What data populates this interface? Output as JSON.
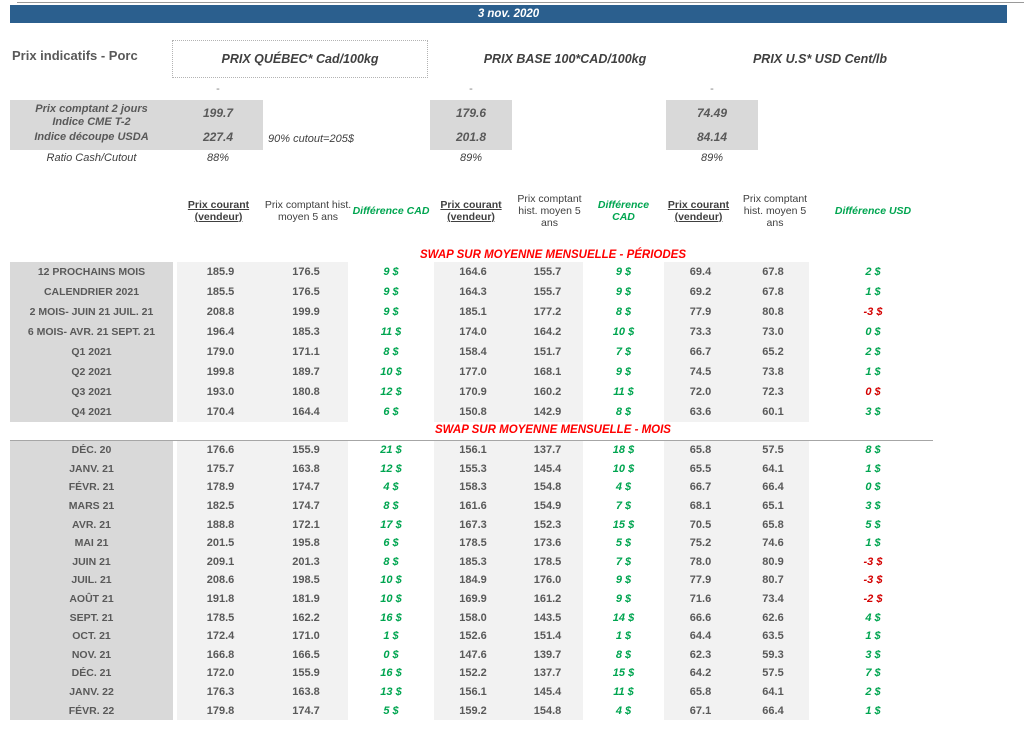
{
  "date_banner": "3 nov. 2020",
  "page_label": "Prix indicatifs - Porc",
  "group_headers": {
    "quebec": "PRIX QUÉBEC* Cad/100kg",
    "base": "PRIX BASE 100*CAD/100kg",
    "us": "PRIX U.S* USD Cent/lb"
  },
  "collapse_marker": "-",
  "spot": {
    "row1": {
      "label_line1": "Prix comptant 2 jours",
      "label_line2": "Indice CME T-2",
      "quebec": "199.7",
      "base": "179.6",
      "us": "74.49"
    },
    "row2": {
      "label": "Indice découpe USDA",
      "quebec": "227.4",
      "note": "90% cutout=205$",
      "base": "201.8",
      "us": "84.14"
    },
    "row3": {
      "label": "Ratio Cash/Cutout",
      "quebec": "88%",
      "base": "89%",
      "us": "89%"
    }
  },
  "table": {
    "column_headers": {
      "prix_courant": "Prix courant (vendeur)",
      "prix_comptant_hist": "Prix comptant hist. moyen 5 ans",
      "difference_cad": "Différence CAD",
      "difference_usd": "Différence USD"
    },
    "sections": [
      {
        "title": "SWAP SUR MOYENNE MENSUELLE - PÉRIODES",
        "rows": [
          {
            "label": "12 PROCHAINS MOIS",
            "values": [
              "185.9",
              "176.5",
              "9 $",
              "164.6",
              "155.7",
              "9 $",
              "69.4",
              "67.8",
              "2 $"
            ],
            "diff_neg": [
              false,
              false,
              false
            ]
          },
          {
            "label": "CALENDRIER 2021",
            "values": [
              "185.5",
              "176.5",
              "9 $",
              "164.3",
              "155.7",
              "9 $",
              "69.2",
              "67.8",
              "1 $"
            ],
            "diff_neg": [
              false,
              false,
              false
            ]
          },
          {
            "label": "2 MOIS- JUIN 21 JUIL. 21",
            "values": [
              "208.8",
              "199.9",
              "9 $",
              "185.1",
              "177.2",
              "8 $",
              "77.9",
              "80.8",
              "-3 $"
            ],
            "diff_neg": [
              false,
              false,
              true
            ]
          },
          {
            "label": "6 MOIS- AVR. 21 SEPT. 21",
            "values": [
              "196.4",
              "185.3",
              "11 $",
              "174.0",
              "164.2",
              "10 $",
              "73.3",
              "73.0",
              "0 $"
            ],
            "diff_neg": [
              false,
              false,
              false
            ]
          },
          {
            "label": "Q1 2021",
            "values": [
              "179.0",
              "171.1",
              "8 $",
              "158.4",
              "151.7",
              "7 $",
              "66.7",
              "65.2",
              "2 $"
            ],
            "diff_neg": [
              false,
              false,
              false
            ]
          },
          {
            "label": "Q2 2021",
            "values": [
              "199.8",
              "189.7",
              "10 $",
              "177.0",
              "168.1",
              "9 $",
              "74.5",
              "73.8",
              "1 $"
            ],
            "diff_neg": [
              false,
              false,
              false
            ]
          },
          {
            "label": "Q3 2021",
            "values": [
              "193.0",
              "180.8",
              "12 $",
              "170.9",
              "160.2",
              "11 $",
              "72.0",
              "72.3",
              "0 $"
            ],
            "diff_neg": [
              false,
              false,
              true
            ]
          },
          {
            "label": "Q4 2021",
            "values": [
              "170.4",
              "164.4",
              "6 $",
              "150.8",
              "142.9",
              "8 $",
              "63.6",
              "60.1",
              "3 $"
            ],
            "diff_neg": [
              false,
              false,
              false
            ]
          }
        ]
      },
      {
        "title": "SWAP SUR MOYENNE MENSUELLE - MOIS",
        "rows": [
          {
            "label": "DÉC. 20",
            "values": [
              "176.6",
              "155.9",
              "21 $",
              "156.1",
              "137.7",
              "18 $",
              "65.8",
              "57.5",
              "8 $"
            ],
            "diff_neg": [
              false,
              false,
              false
            ]
          },
          {
            "label": "JANV. 21",
            "values": [
              "175.7",
              "163.8",
              "12 $",
              "155.3",
              "145.4",
              "10 $",
              "65.5",
              "64.1",
              "1 $"
            ],
            "diff_neg": [
              false,
              false,
              false
            ]
          },
          {
            "label": "FÉVR. 21",
            "values": [
              "178.9",
              "174.7",
              "4 $",
              "158.3",
              "154.8",
              "4 $",
              "66.7",
              "66.4",
              "0 $"
            ],
            "diff_neg": [
              false,
              false,
              false
            ]
          },
          {
            "label": "MARS 21",
            "values": [
              "182.5",
              "174.7",
              "8 $",
              "161.6",
              "154.9",
              "7 $",
              "68.1",
              "65.1",
              "3 $"
            ],
            "diff_neg": [
              false,
              false,
              false
            ]
          },
          {
            "label": "AVR. 21",
            "values": [
              "188.8",
              "172.1",
              "17 $",
              "167.3",
              "152.3",
              "15 $",
              "70.5",
              "65.8",
              "5 $"
            ],
            "diff_neg": [
              false,
              false,
              false
            ]
          },
          {
            "label": "MAI 21",
            "values": [
              "201.5",
              "195.8",
              "6 $",
              "178.5",
              "173.6",
              "5 $",
              "75.2",
              "74.6",
              "1 $"
            ],
            "diff_neg": [
              false,
              false,
              false
            ]
          },
          {
            "label": "JUIN 21",
            "values": [
              "209.1",
              "201.3",
              "8 $",
              "185.3",
              "178.5",
              "7 $",
              "78.0",
              "80.9",
              "-3 $"
            ],
            "diff_neg": [
              false,
              false,
              true
            ]
          },
          {
            "label": "JUIL. 21",
            "values": [
              "208.6",
              "198.5",
              "10 $",
              "184.9",
              "176.0",
              "9 $",
              "77.9",
              "80.7",
              "-3 $"
            ],
            "diff_neg": [
              false,
              false,
              true
            ]
          },
          {
            "label": "AOÛT 21",
            "values": [
              "191.8",
              "181.9",
              "10 $",
              "169.9",
              "161.2",
              "9 $",
              "71.6",
              "73.4",
              "-2 $"
            ],
            "diff_neg": [
              false,
              false,
              true
            ]
          },
          {
            "label": "SEPT. 21",
            "values": [
              "178.5",
              "162.2",
              "16 $",
              "158.0",
              "143.5",
              "14 $",
              "66.6",
              "62.6",
              "4 $"
            ],
            "diff_neg": [
              false,
              false,
              false
            ]
          },
          {
            "label": "OCT. 21",
            "values": [
              "172.4",
              "171.0",
              "1 $",
              "152.6",
              "151.4",
              "1 $",
              "64.4",
              "63.5",
              "1 $"
            ],
            "diff_neg": [
              false,
              false,
              false
            ]
          },
          {
            "label": "NOV. 21",
            "values": [
              "166.8",
              "166.5",
              "0 $",
              "147.6",
              "139.7",
              "8 $",
              "62.3",
              "59.3",
              "3 $"
            ],
            "diff_neg": [
              false,
              false,
              false
            ]
          },
          {
            "label": "DÉC. 21",
            "values": [
              "172.0",
              "155.9",
              "16 $",
              "152.2",
              "137.7",
              "15 $",
              "64.2",
              "57.5",
              "7 $"
            ],
            "diff_neg": [
              false,
              false,
              false
            ]
          },
          {
            "label": "JANV. 22",
            "values": [
              "176.3",
              "163.8",
              "13 $",
              "156.1",
              "145.4",
              "11 $",
              "65.8",
              "64.1",
              "2 $"
            ],
            "diff_neg": [
              false,
              false,
              false
            ]
          },
          {
            "label": "FÉVR. 22",
            "values": [
              "179.8",
              "174.7",
              "5 $",
              "159.2",
              "154.8",
              "4 $",
              "67.1",
              "66.4",
              "1 $"
            ],
            "diff_neg": [
              false,
              false,
              false
            ]
          }
        ]
      }
    ]
  },
  "colors": {
    "banner_blue": "#2b5f8e",
    "positive_green": "#00a550",
    "negative_red": "#d40000",
    "section_title_red": "#ff0000",
    "label_gray": "#d9d9d9",
    "cell_gray": "#f2f2f2"
  }
}
